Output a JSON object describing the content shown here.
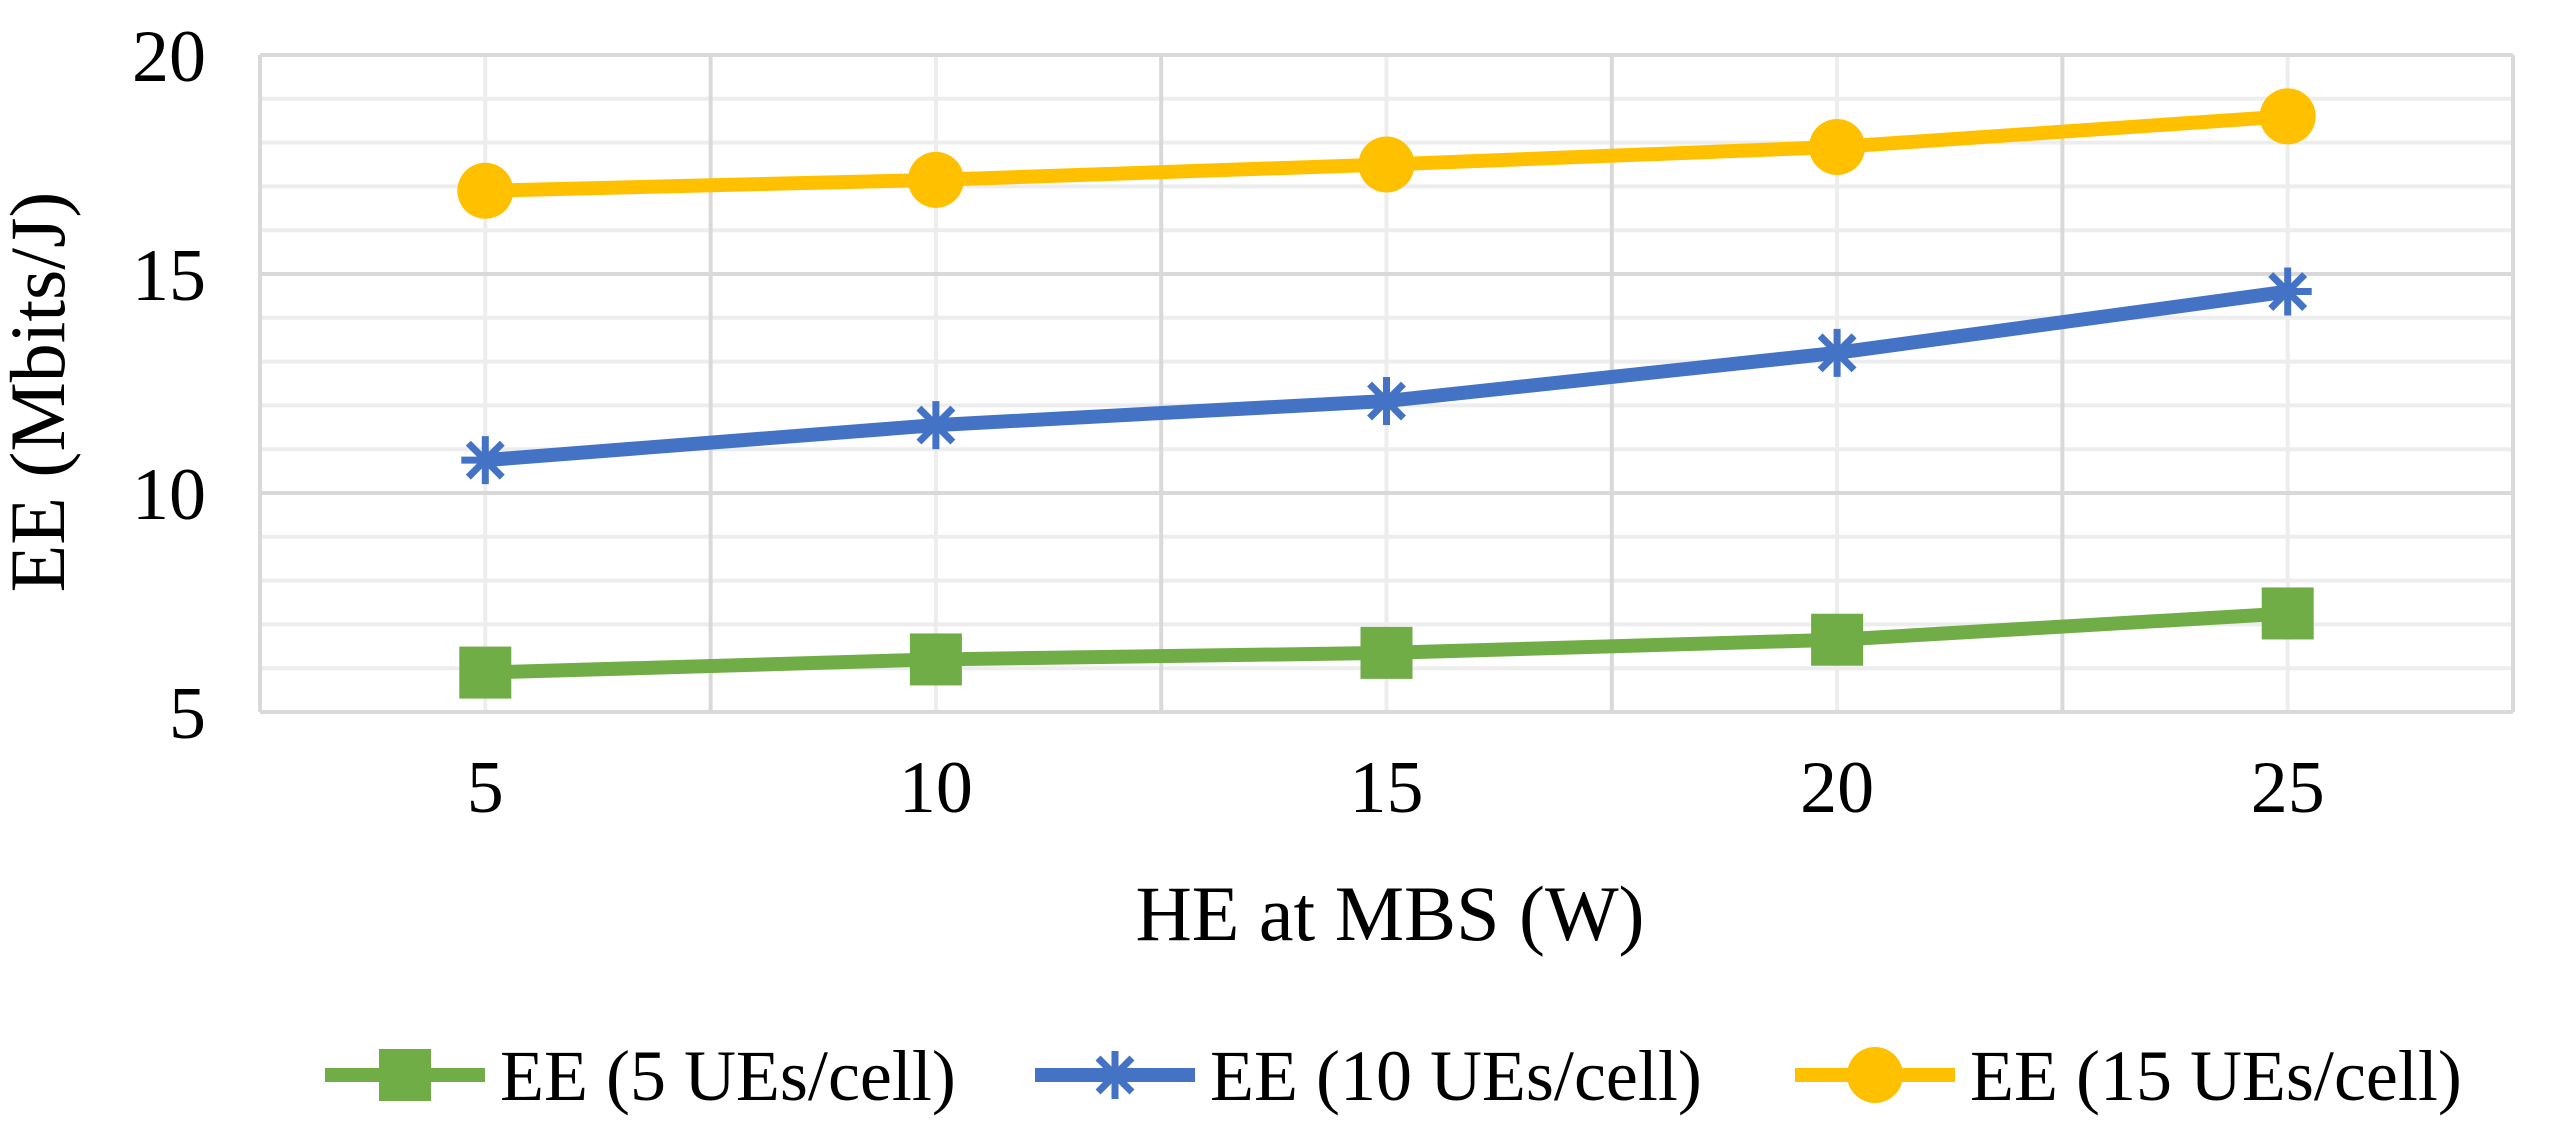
{
  "chart_data": {
    "type": "line",
    "title": "",
    "xlabel": "HE at MBS (W)",
    "ylabel": "EE (Mbits/J)",
    "x": [
      5,
      10,
      15,
      20,
      25
    ],
    "x_tick_labels": [
      "5",
      "10",
      "15",
      "20",
      "25"
    ],
    "ylim": [
      5,
      20
    ],
    "y_ticks": [
      5,
      10,
      15,
      20
    ],
    "y_tick_labels": [
      "5",
      "10",
      "15",
      "20"
    ],
    "grid": true,
    "legend_position": "bottom",
    "series": [
      {
        "name": "EE (5 UEs/cell)",
        "marker": "square",
        "color": "#70AD47",
        "values": [
          5.9,
          6.2,
          6.35,
          6.65,
          7.25
        ]
      },
      {
        "name": "EE (10 UEs/cell)",
        "marker": "star",
        "color": "#4472C4",
        "values": [
          10.75,
          11.55,
          12.1,
          13.2,
          14.6
        ]
      },
      {
        "name": "EE (15 UEs/cell)",
        "marker": "circle",
        "color": "#FFC000",
        "values": [
          16.9,
          17.15,
          17.5,
          17.9,
          18.6
        ]
      }
    ]
  }
}
